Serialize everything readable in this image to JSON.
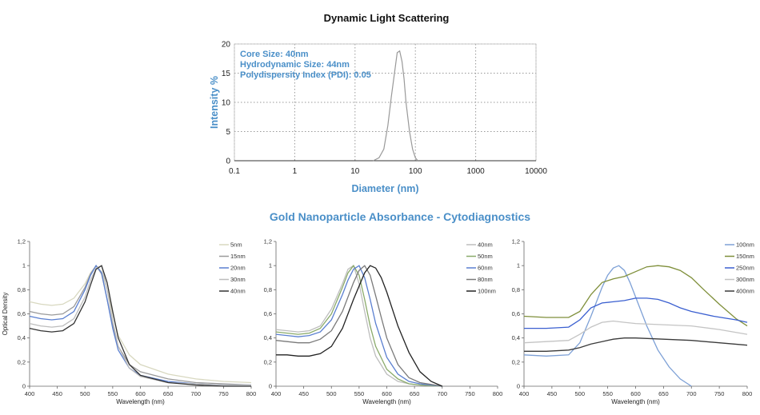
{
  "dls": {
    "title": "Dynamic Light Scattering",
    "annotations": [
      "Core Size: 40nm",
      "Hydrodynamic Size: 44nm",
      "Polydispersity Index (PDI): 0.05"
    ]
  },
  "section_title": "Gold Nanoparticle Absorbance - Cytodiagnostics",
  "colors": {
    "dls_label": "#4a8fc8",
    "section_title": "#4a8fc8"
  },
  "chart_data": [
    {
      "type": "line",
      "title": "Dynamic Light Scattering",
      "xlabel": "Diameter (nm)",
      "ylabel": "Intensity %",
      "xscale": "log",
      "xlim": [
        0.1,
        10000
      ],
      "ylim": [
        0,
        20
      ],
      "xticks": [
        0.1,
        1,
        10,
        100,
        1000,
        10000
      ],
      "xtick_labels": [
        "0.1",
        "1",
        "10",
        "100",
        "1000",
        "10000"
      ],
      "yticks": [
        0,
        5,
        10,
        15,
        20
      ],
      "grid": true,
      "series": [
        {
          "color": "#999999",
          "x": [
            20,
            25,
            30,
            35,
            40,
            45,
            50,
            55,
            60,
            65,
            70,
            80,
            90,
            100,
            110
          ],
          "y": [
            0,
            0.5,
            2,
            6,
            11,
            15,
            18.5,
            18.8,
            17,
            14,
            10,
            5,
            2,
            0.5,
            0
          ]
        }
      ]
    },
    {
      "type": "line",
      "xlabel": "Wavelength (nm)",
      "ylabel": "Optical Density",
      "xlim": [
        400,
        800
      ],
      "ylim": [
        0,
        1.2
      ],
      "xticks": [
        400,
        450,
        500,
        550,
        600,
        650,
        700,
        750,
        800
      ],
      "yticks": [
        0,
        0.2,
        0.4,
        0.6,
        0.8,
        1,
        1.2
      ],
      "ytick_labels": [
        "0",
        "0,2",
        "0,4",
        "0,6",
        "0,8",
        "1",
        "1,2"
      ],
      "legend": "top-right",
      "series": [
        {
          "name": "5nm",
          "color": "#d8d8c0",
          "x": [
            400,
            420,
            440,
            460,
            480,
            500,
            510,
            520,
            530,
            540,
            550,
            560,
            580,
            600,
            650,
            700,
            750,
            800
          ],
          "y": [
            0.7,
            0.68,
            0.67,
            0.68,
            0.73,
            0.85,
            0.94,
            1.0,
            0.95,
            0.8,
            0.6,
            0.42,
            0.26,
            0.18,
            0.1,
            0.06,
            0.04,
            0.03
          ]
        },
        {
          "name": "15nm",
          "color": "#9a9a9a",
          "x": [
            400,
            420,
            440,
            460,
            480,
            500,
            510,
            520,
            530,
            540,
            550,
            560,
            580,
            600,
            650,
            700,
            750,
            800
          ],
          "y": [
            0.62,
            0.6,
            0.59,
            0.6,
            0.66,
            0.82,
            0.93,
            1.0,
            0.93,
            0.72,
            0.5,
            0.33,
            0.18,
            0.12,
            0.06,
            0.03,
            0.02,
            0.01
          ]
        },
        {
          "name": "20nm",
          "color": "#5a7fd0",
          "x": [
            400,
            420,
            440,
            460,
            480,
            500,
            510,
            520,
            530,
            540,
            550,
            560,
            580,
            600,
            650,
            700,
            750,
            800
          ],
          "y": [
            0.58,
            0.56,
            0.55,
            0.56,
            0.62,
            0.8,
            0.92,
            1.0,
            0.94,
            0.72,
            0.48,
            0.3,
            0.15,
            0.09,
            0.04,
            0.02,
            0.01,
            0.01
          ]
        },
        {
          "name": "30nm",
          "color": "#bdbdbd",
          "x": [
            400,
            420,
            440,
            460,
            480,
            500,
            510,
            520,
            530,
            540,
            550,
            560,
            580,
            600,
            650,
            700,
            750,
            800
          ],
          "y": [
            0.52,
            0.5,
            0.49,
            0.5,
            0.56,
            0.74,
            0.88,
            0.98,
            1.0,
            0.8,
            0.54,
            0.33,
            0.15,
            0.08,
            0.03,
            0.02,
            0.01,
            0.01
          ]
        },
        {
          "name": "40nm",
          "color": "#333333",
          "x": [
            400,
            420,
            440,
            460,
            480,
            500,
            510,
            520,
            530,
            540,
            550,
            560,
            580,
            600,
            650,
            700,
            750,
            800
          ],
          "y": [
            0.48,
            0.46,
            0.45,
            0.46,
            0.52,
            0.7,
            0.84,
            0.97,
            1.0,
            0.86,
            0.62,
            0.4,
            0.18,
            0.09,
            0.03,
            0.01,
            0.0,
            0.0
          ]
        }
      ]
    },
    {
      "type": "line",
      "xlabel": "Wavelength (nm)",
      "xlim": [
        400,
        800
      ],
      "ylim": [
        0,
        1.2
      ],
      "xticks": [
        400,
        450,
        500,
        550,
        600,
        650,
        700,
        750,
        800
      ],
      "yticks": [
        0,
        0.2,
        0.4,
        0.6,
        0.8,
        1,
        1.2
      ],
      "ytick_labels": [
        "0",
        "0,2",
        "0,4",
        "0,6",
        "0,8",
        "1",
        "1,2"
      ],
      "legend": "top-right",
      "series": [
        {
          "name": "40nm",
          "color": "#bdbdbd",
          "x": [
            400,
            420,
            440,
            460,
            480,
            500,
            520,
            530,
            540,
            550,
            560,
            570,
            580,
            600,
            620,
            640,
            660,
            700
          ],
          "y": [
            0.47,
            0.46,
            0.45,
            0.46,
            0.5,
            0.64,
            0.85,
            0.97,
            1.0,
            0.85,
            0.62,
            0.4,
            0.25,
            0.1,
            0.04,
            0.02,
            0.01,
            0.0
          ]
        },
        {
          "name": "50nm",
          "color": "#8aaa6a",
          "x": [
            400,
            420,
            440,
            460,
            480,
            500,
            520,
            530,
            540,
            550,
            560,
            570,
            580,
            600,
            620,
            640,
            660,
            700
          ],
          "y": [
            0.45,
            0.44,
            0.43,
            0.44,
            0.48,
            0.6,
            0.82,
            0.94,
            1.0,
            0.92,
            0.72,
            0.5,
            0.33,
            0.14,
            0.06,
            0.02,
            0.01,
            0.0
          ]
        },
        {
          "name": "60nm",
          "color": "#5a7fd0",
          "x": [
            400,
            420,
            440,
            460,
            480,
            500,
            520,
            530,
            540,
            550,
            560,
            570,
            580,
            600,
            620,
            640,
            660,
            700
          ],
          "y": [
            0.43,
            0.42,
            0.41,
            0.42,
            0.45,
            0.55,
            0.76,
            0.88,
            0.97,
            1.0,
            0.9,
            0.72,
            0.52,
            0.24,
            0.1,
            0.04,
            0.02,
            0.0
          ]
        },
        {
          "name": "80nm",
          "color": "#7a7a7a",
          "x": [
            400,
            420,
            440,
            460,
            480,
            500,
            520,
            540,
            550,
            560,
            570,
            580,
            590,
            600,
            620,
            640,
            660,
            700
          ],
          "y": [
            0.38,
            0.37,
            0.36,
            0.36,
            0.39,
            0.46,
            0.62,
            0.86,
            0.96,
            1.0,
            0.92,
            0.75,
            0.57,
            0.4,
            0.18,
            0.07,
            0.03,
            0.0
          ]
        },
        {
          "name": "100nm",
          "color": "#222222",
          "x": [
            400,
            420,
            440,
            460,
            480,
            500,
            520,
            540,
            560,
            570,
            580,
            590,
            600,
            620,
            640,
            660,
            680,
            700
          ],
          "y": [
            0.26,
            0.26,
            0.25,
            0.25,
            0.27,
            0.33,
            0.48,
            0.72,
            0.94,
            1.0,
            0.98,
            0.9,
            0.78,
            0.5,
            0.28,
            0.12,
            0.04,
            0.0
          ]
        }
      ]
    },
    {
      "type": "line",
      "xlabel": "Wavelength (nm)",
      "xlim": [
        400,
        800
      ],
      "ylim": [
        0,
        1.2
      ],
      "xticks": [
        400,
        450,
        500,
        550,
        600,
        650,
        700,
        750,
        800
      ],
      "yticks": [
        0,
        0.2,
        0.4,
        0.6,
        0.8,
        1,
        1.2
      ],
      "ytick_labels": [
        "0",
        "0,2",
        "0,4",
        "0,6",
        "0,8",
        "1",
        "1,2"
      ],
      "legend": "top-right",
      "series": [
        {
          "name": "100nm",
          "color": "#7da0d6",
          "x": [
            400,
            440,
            480,
            500,
            520,
            540,
            550,
            560,
            570,
            580,
            590,
            600,
            620,
            640,
            660,
            680,
            700
          ],
          "y": [
            0.26,
            0.25,
            0.26,
            0.36,
            0.58,
            0.82,
            0.92,
            0.98,
            1.0,
            0.96,
            0.86,
            0.74,
            0.5,
            0.3,
            0.16,
            0.06,
            0.0
          ]
        },
        {
          "name": "150nm",
          "color": "#7f8f3a",
          "x": [
            400,
            440,
            480,
            500,
            520,
            540,
            560,
            580,
            600,
            620,
            640,
            660,
            680,
            700,
            720,
            750,
            780,
            800
          ],
          "y": [
            0.58,
            0.57,
            0.57,
            0.62,
            0.76,
            0.86,
            0.89,
            0.91,
            0.95,
            0.99,
            1.0,
            0.99,
            0.96,
            0.9,
            0.81,
            0.68,
            0.56,
            0.5
          ]
        },
        {
          "name": "250nm",
          "color": "#3a5fd0",
          "x": [
            400,
            440,
            480,
            500,
            520,
            540,
            560,
            580,
            600,
            620,
            640,
            660,
            680,
            700,
            740,
            780,
            800
          ],
          "y": [
            0.48,
            0.48,
            0.49,
            0.55,
            0.65,
            0.69,
            0.7,
            0.71,
            0.73,
            0.73,
            0.72,
            0.69,
            0.65,
            0.62,
            0.58,
            0.55,
            0.53
          ]
        },
        {
          "name": "300nm",
          "color": "#c4c4c4",
          "x": [
            400,
            440,
            480,
            500,
            520,
            540,
            560,
            580,
            600,
            650,
            700,
            750,
            800
          ],
          "y": [
            0.36,
            0.37,
            0.38,
            0.43,
            0.49,
            0.53,
            0.54,
            0.53,
            0.52,
            0.51,
            0.5,
            0.47,
            0.43
          ]
        },
        {
          "name": "400nm",
          "color": "#3a3a3a",
          "x": [
            400,
            440,
            480,
            500,
            520,
            540,
            560,
            580,
            600,
            650,
            700,
            750,
            800
          ],
          "y": [
            0.29,
            0.29,
            0.3,
            0.32,
            0.35,
            0.37,
            0.39,
            0.4,
            0.4,
            0.39,
            0.38,
            0.36,
            0.34
          ]
        }
      ]
    }
  ]
}
